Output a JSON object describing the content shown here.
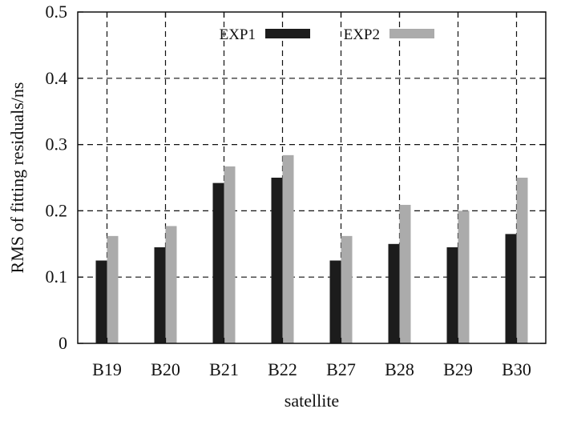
{
  "chart_data": {
    "type": "bar",
    "title": "",
    "xlabel": "satellite",
    "ylabel": "RMS of fitting residuals/ns",
    "ylim": [
      0,
      0.5
    ],
    "yticks": [
      "0",
      "0.1",
      "0.2",
      "0.3",
      "0.4",
      "0.5"
    ],
    "grid": true,
    "legend_position": "top-center",
    "categories": [
      "B19",
      "B20",
      "B21",
      "B22",
      "B27",
      "B28",
      "B29",
      "B30"
    ],
    "category_positions": [
      1,
      2,
      3,
      4,
      5,
      6,
      7,
      8
    ],
    "category_positions_note": "",
    "series": [
      {
        "name": "EXP1",
        "color": "#1c1c1c",
        "values": [
          0.125,
          0.145,
          0.242,
          0.25,
          0.125,
          0.15,
          0.145,
          0.165
        ]
      },
      {
        "name": "EXP2",
        "color": "#ababab",
        "values": [
          0.162,
          0.177,
          0.267,
          0.284,
          0.162,
          0.209,
          0.2,
          0.25
        ]
      }
    ]
  }
}
